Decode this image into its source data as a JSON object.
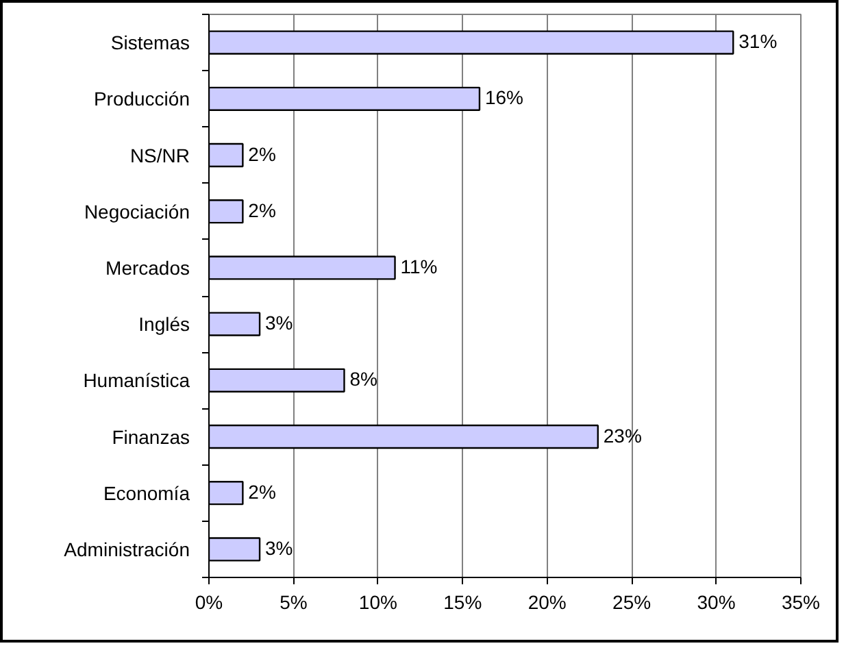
{
  "chart_data": {
    "type": "bar",
    "orientation": "horizontal",
    "categories": [
      "Sistemas",
      "Producción",
      "NS/NR",
      "Negociación",
      "Mercados",
      "Inglés",
      "Humanística",
      "Finanzas",
      "Economía",
      "Administración"
    ],
    "values": [
      31,
      16,
      2,
      2,
      11,
      3,
      8,
      23,
      2,
      3
    ],
    "value_labels": [
      "31%",
      "16%",
      "2%",
      "2%",
      "11%",
      "3%",
      "8%",
      "23%",
      "2%",
      "3%"
    ],
    "color": "#ccccff",
    "xlim": [
      0,
      35
    ],
    "xticks": [
      {
        "value": 0,
        "label": "0%"
      },
      {
        "value": 5,
        "label": "5%"
      },
      {
        "value": 10,
        "label": "10%"
      },
      {
        "value": 15,
        "label": "15%"
      },
      {
        "value": 20,
        "label": "20%"
      },
      {
        "value": 25,
        "label": "25%"
      },
      {
        "value": 30,
        "label": "30%"
      },
      {
        "value": 35,
        "label": "35%"
      }
    ],
    "grid": "x"
  }
}
